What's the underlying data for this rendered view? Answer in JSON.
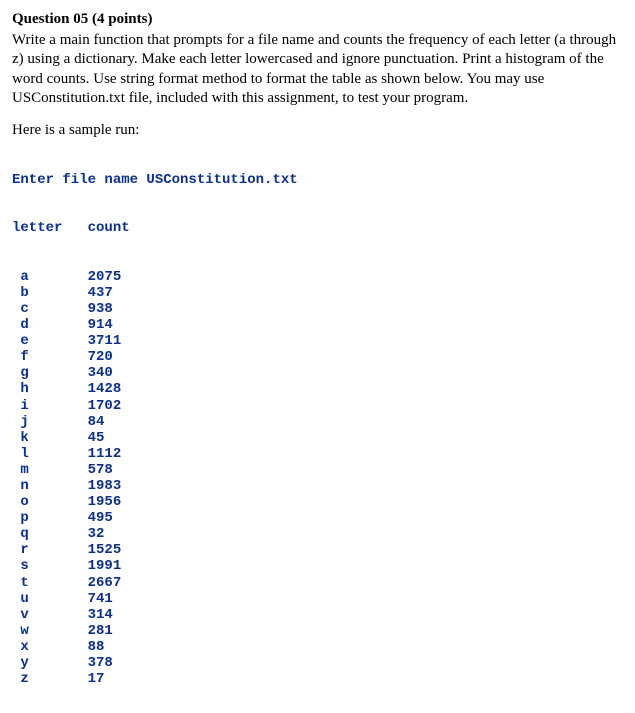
{
  "question": {
    "title": "Question 05 (4 points)",
    "body": "Write a main function that prompts for a file name and counts the frequency of each letter (a through z) using a dictionary. Make each letter lowercased and ignore punctuation. Print a histogram of the word counts. Use string format method to format the table as shown below. You may use USConstitution.txt file, included with this assignment, to test your program."
  },
  "sample": {
    "label": "Here is a sample run:",
    "prompt_prefix": "Enter file name ",
    "filename": "USConstitution.txt",
    "header_letter": "letter",
    "header_count": "count",
    "rows": [
      {
        "letter": "a",
        "count": "2075"
      },
      {
        "letter": "b",
        "count": "437"
      },
      {
        "letter": "c",
        "count": "938"
      },
      {
        "letter": "d",
        "count": "914"
      },
      {
        "letter": "e",
        "count": "3711"
      },
      {
        "letter": "f",
        "count": "720"
      },
      {
        "letter": "g",
        "count": "340"
      },
      {
        "letter": "h",
        "count": "1428"
      },
      {
        "letter": "i",
        "count": "1702"
      },
      {
        "letter": "j",
        "count": "84"
      },
      {
        "letter": "k",
        "count": "45"
      },
      {
        "letter": "l",
        "count": "1112"
      },
      {
        "letter": "m",
        "count": "578"
      },
      {
        "letter": "n",
        "count": "1983"
      },
      {
        "letter": "o",
        "count": "1956"
      },
      {
        "letter": "p",
        "count": "495"
      },
      {
        "letter": "q",
        "count": "32"
      },
      {
        "letter": "r",
        "count": "1525"
      },
      {
        "letter": "s",
        "count": "1991"
      },
      {
        "letter": "t",
        "count": "2667"
      },
      {
        "letter": "u",
        "count": "741"
      },
      {
        "letter": "v",
        "count": "314"
      },
      {
        "letter": "w",
        "count": "281"
      },
      {
        "letter": "x",
        "count": "88"
      },
      {
        "letter": "y",
        "count": "378"
      },
      {
        "letter": "z",
        "count": "17"
      }
    ]
  },
  "colors": {
    "mono_text": "#0b2f8a",
    "body_text": "#000000",
    "background": "#ffffff"
  }
}
